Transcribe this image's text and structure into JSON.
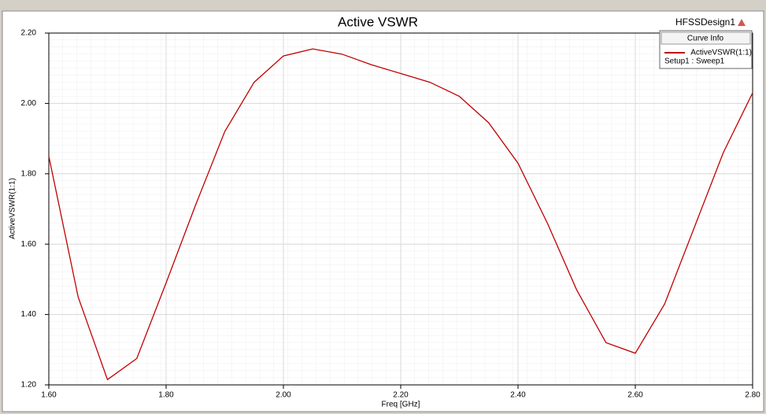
{
  "chart_data": {
    "type": "line",
    "title": "Active VSWR",
    "design_name": "HFSSDesign1",
    "legend_title": "Curve Info",
    "x_label": "Freq [GHz]",
    "y_label": "ActiveVSWR(1:1)",
    "x": [
      1.6,
      1.65,
      1.7,
      1.75,
      1.8,
      1.85,
      1.9,
      1.95,
      2.0,
      2.05,
      2.1,
      2.15,
      2.2,
      2.25,
      2.3,
      2.35,
      2.4,
      2.45,
      2.5,
      2.55,
      2.6,
      2.65,
      2.7,
      2.75,
      2.8
    ],
    "series": [
      {
        "name": "ActiveVSWR(1:1)",
        "setup": "Setup1 : Sweep1",
        "color": "#c00000",
        "values": [
          1.85,
          1.45,
          1.215,
          1.275,
          1.49,
          1.71,
          1.92,
          2.06,
          2.135,
          2.155,
          2.14,
          2.11,
          2.085,
          2.06,
          2.02,
          1.945,
          1.83,
          1.66,
          1.47,
          1.32,
          1.29,
          1.43,
          1.645,
          1.86,
          2.03
        ]
      }
    ],
    "xlim": [
      1.6,
      2.8
    ],
    "xticks": [
      {
        "value": 1.6,
        "label": "1.60"
      },
      {
        "value": 1.8,
        "label": "1.80"
      },
      {
        "value": 2.0,
        "label": "2.00"
      },
      {
        "value": 2.2,
        "label": "2.20"
      },
      {
        "value": 2.4,
        "label": "2.40"
      },
      {
        "value": 2.6,
        "label": "2.60"
      },
      {
        "value": 2.8,
        "label": "2.80"
      }
    ],
    "ylim": [
      1.2,
      2.2
    ],
    "yticks": [
      {
        "value": 1.2,
        "label": "1.20"
      },
      {
        "value": 1.4,
        "label": "1.40"
      },
      {
        "value": 1.6,
        "label": "1.60"
      },
      {
        "value": 1.8,
        "label": "1.80"
      },
      {
        "value": 2.0,
        "label": "2.00"
      },
      {
        "value": 2.2,
        "label": "2.20"
      }
    ],
    "grid": true
  }
}
